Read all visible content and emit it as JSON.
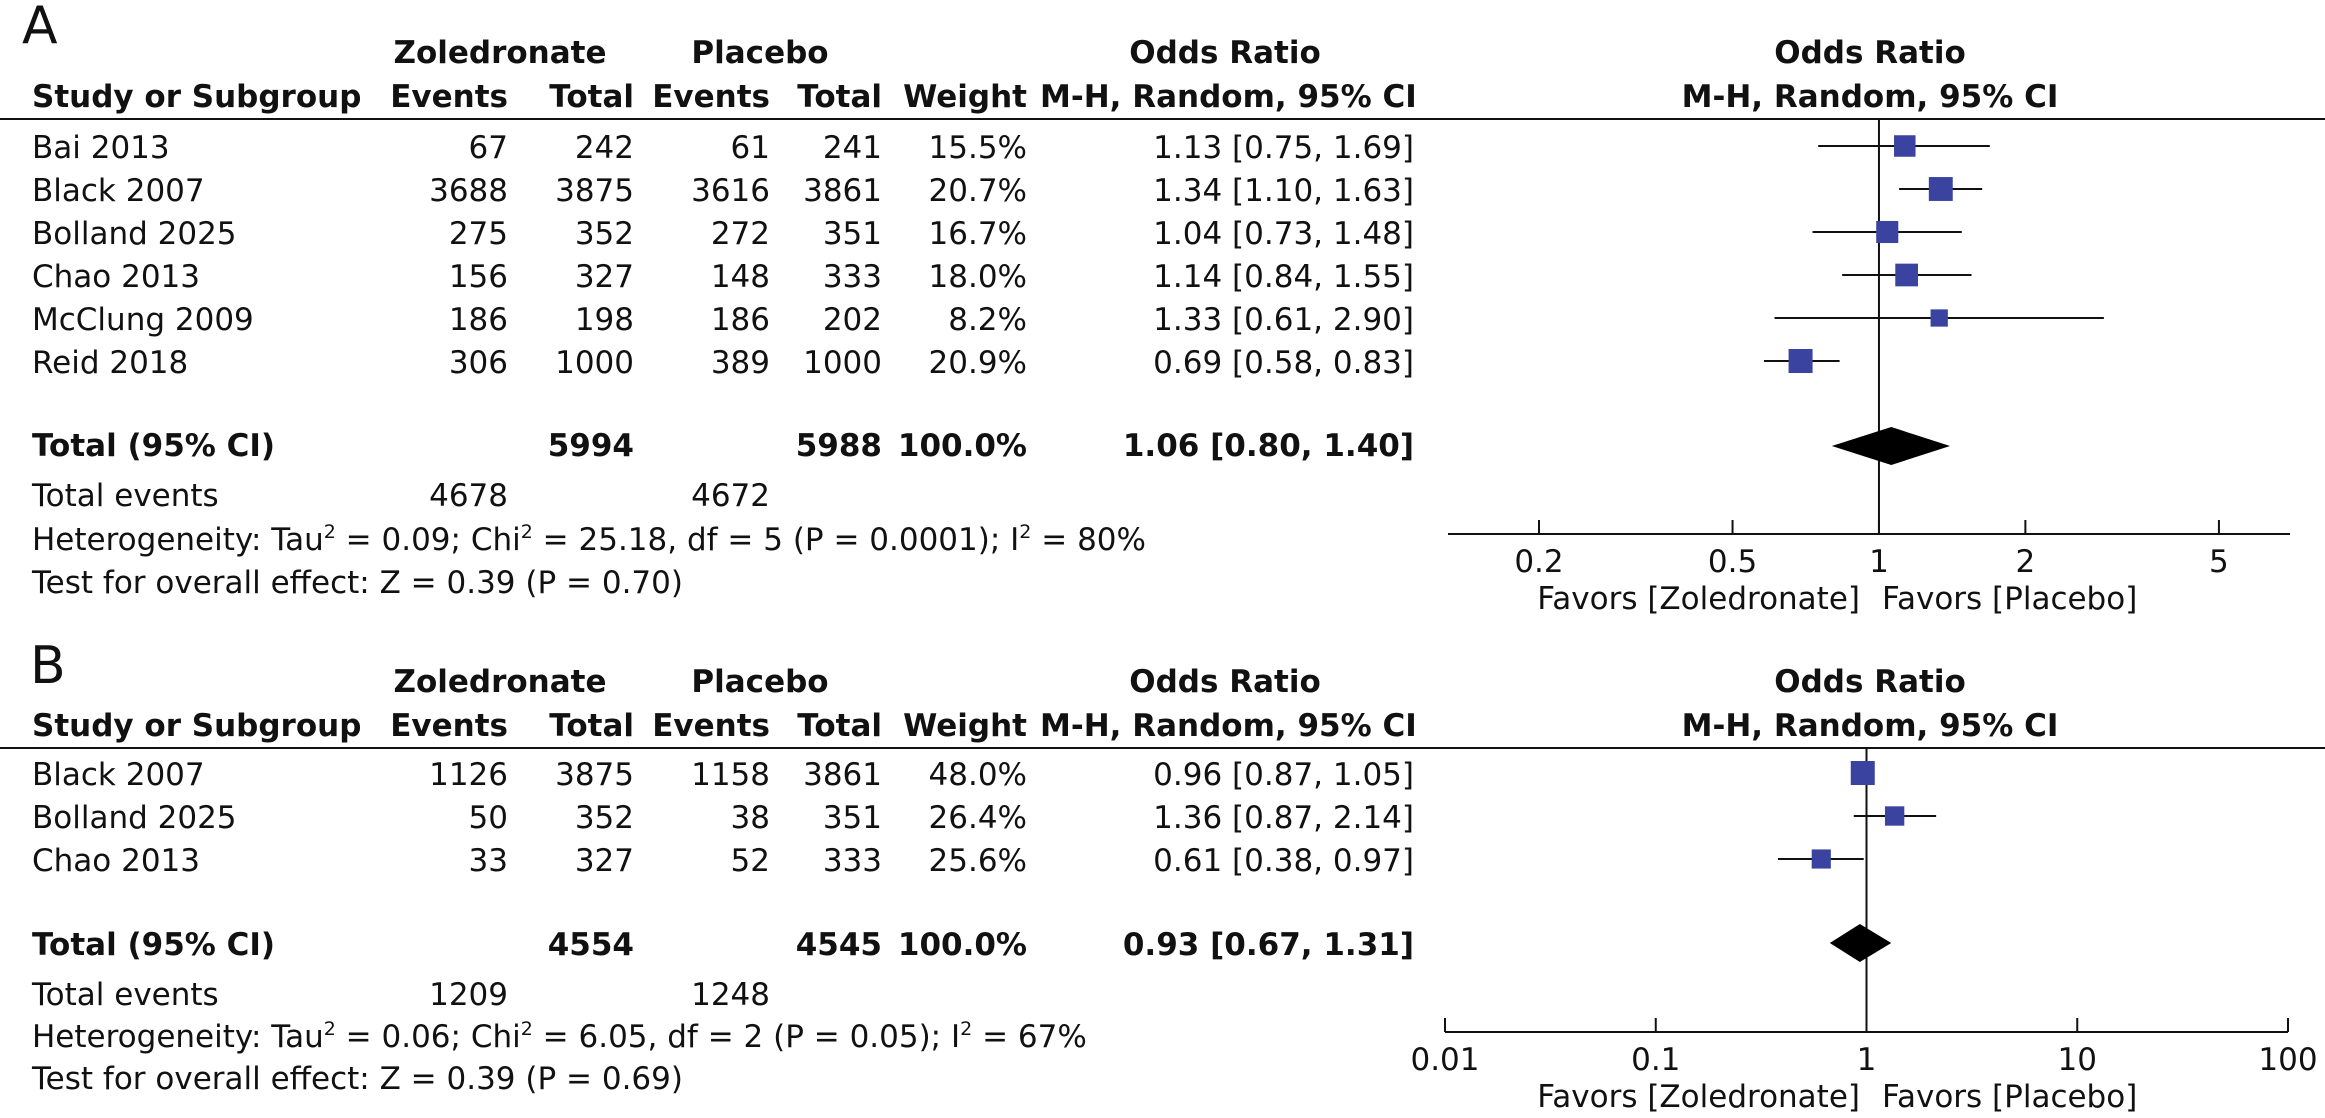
{
  "chart_data": [
    {
      "type": "forest",
      "panel_label": "A",
      "headers": {
        "group1": "Zoledronate",
        "group2": "Placebo",
        "study_col": "Study or Subgroup",
        "events": "Events",
        "total": "Total",
        "weight": "Weight",
        "or_top": "Odds Ratio",
        "or_method": "M-H, Random, 95% CI",
        "plot_top": "Odds Ratio",
        "plot_method": "M-H, Random, 95% CI"
      },
      "studies": [
        {
          "name": "Bai 2013",
          "e1": "67",
          "t1": "242",
          "e2": "61",
          "t2": "241",
          "weight": "15.5%",
          "ci_text": "1.13 [0.75, 1.69]",
          "or": 1.13,
          "lo": 0.75,
          "hi": 1.69,
          "w": 15.5
        },
        {
          "name": "Black 2007",
          "e1": "3688",
          "t1": "3875",
          "e2": "3616",
          "t2": "3861",
          "weight": "20.7%",
          "ci_text": "1.34 [1.10, 1.63]",
          "or": 1.34,
          "lo": 1.1,
          "hi": 1.63,
          "w": 20.7
        },
        {
          "name": "Bolland 2025",
          "e1": "275",
          "t1": "352",
          "e2": "272",
          "t2": "351",
          "weight": "16.7%",
          "ci_text": "1.04 [0.73, 1.48]",
          "or": 1.04,
          "lo": 0.73,
          "hi": 1.48,
          "w": 16.7
        },
        {
          "name": "Chao 2013",
          "e1": "156",
          "t1": "327",
          "e2": "148",
          "t2": "333",
          "weight": "18.0%",
          "ci_text": "1.14 [0.84, 1.55]",
          "or": 1.14,
          "lo": 0.84,
          "hi": 1.55,
          "w": 18.0
        },
        {
          "name": "McClung 2009",
          "e1": "186",
          "t1": "198",
          "e2": "186",
          "t2": "202",
          "weight": "8.2%",
          "ci_text": "1.33 [0.61, 2.90]",
          "or": 1.33,
          "lo": 0.61,
          "hi": 2.9,
          "w": 8.2
        },
        {
          "name": "Reid 2018",
          "e1": "306",
          "t1": "1000",
          "e2": "389",
          "t2": "1000",
          "weight": "20.9%",
          "ci_text": "0.69 [0.58, 0.83]",
          "or": 0.69,
          "lo": 0.58,
          "hi": 0.83,
          "w": 20.9
        }
      ],
      "total": {
        "label": "Total (95% CI)",
        "t1": "5994",
        "t2": "5988",
        "weight": "100.0%",
        "ci_text": "1.06 [0.80, 1.40]",
        "or": 1.06,
        "lo": 0.8,
        "hi": 1.4
      },
      "total_events": {
        "label": "Total events",
        "e1": "4678",
        "e2": "4672"
      },
      "heterogeneity": {
        "pre": "Heterogeneity: Tau",
        "mid1": " = 0.09; Chi",
        "mid2": " = 25.18, df = 5 (P = 0.0001); I",
        "post": " = 80%",
        "sup": "2"
      },
      "overall_effect": "Test for overall effect: Z = 0.39 (P = 0.70)",
      "axis": {
        "scale": "log",
        "xlim": [
          0.13,
          7.0
        ],
        "ticks": [
          0.2,
          0.5,
          1,
          2,
          5
        ],
        "tick_labels": [
          "0.2",
          "0.5",
          "1",
          "2",
          "5"
        ]
      },
      "favors_left": "Favors [Zoledronate]",
      "favors_right": "Favors [Placebo]",
      "colors": {
        "marker": "#3a44a0",
        "line": "#111111"
      }
    },
    {
      "type": "forest",
      "panel_label": "B",
      "headers": {
        "group1": "Zoledronate",
        "group2": "Placebo",
        "study_col": "Study or Subgroup",
        "events": "Events",
        "total": "Total",
        "weight": "Weight",
        "or_top": "Odds Ratio",
        "or_method": "M-H, Random, 95% CI",
        "plot_top": "Odds Ratio",
        "plot_method": "M-H, Random, 95% CI"
      },
      "studies": [
        {
          "name": "Black 2007",
          "e1": "1126",
          "t1": "3875",
          "e2": "1158",
          "t2": "3861",
          "weight": "48.0%",
          "ci_text": "0.96 [0.87, 1.05]",
          "or": 0.96,
          "lo": 0.87,
          "hi": 1.05,
          "w": 48.0
        },
        {
          "name": "Bolland 2025",
          "e1": "50",
          "t1": "352",
          "e2": "38",
          "t2": "351",
          "weight": "26.4%",
          "ci_text": "1.36 [0.87, 2.14]",
          "or": 1.36,
          "lo": 0.87,
          "hi": 2.14,
          "w": 26.4
        },
        {
          "name": "Chao 2013",
          "e1": "33",
          "t1": "327",
          "e2": "52",
          "t2": "333",
          "weight": "25.6%",
          "ci_text": "0.61 [0.38, 0.97]",
          "or": 0.61,
          "lo": 0.38,
          "hi": 0.97,
          "w": 25.6
        }
      ],
      "total": {
        "label": "Total (95% CI)",
        "t1": "4554",
        "t2": "4545",
        "weight": "100.0%",
        "ci_text": "0.93 [0.67, 1.31]",
        "or": 0.93,
        "lo": 0.67,
        "hi": 1.31
      },
      "total_events": {
        "label": "Total events",
        "e1": "1209",
        "e2": "1248"
      },
      "heterogeneity": {
        "pre": "Heterogeneity: Tau",
        "mid1": " = 0.06; Chi",
        "mid2": " = 6.05, df = 2 (P = 0.05); I",
        "post": " = 67%",
        "sup": "2"
      },
      "overall_effect": "Test for overall effect: Z = 0.39 (P = 0.69)",
      "axis": {
        "scale": "log",
        "xlim": [
          0.01,
          100
        ],
        "ticks": [
          0.01,
          0.1,
          1,
          10,
          100
        ],
        "tick_labels": [
          "0.01",
          "0.1",
          "1",
          "10",
          "100"
        ]
      },
      "favors_left": "Favors [Zoledronate]",
      "favors_right": "Favors [Placebo]",
      "colors": {
        "marker": "#3a44a0",
        "line": "#111111"
      }
    }
  ]
}
